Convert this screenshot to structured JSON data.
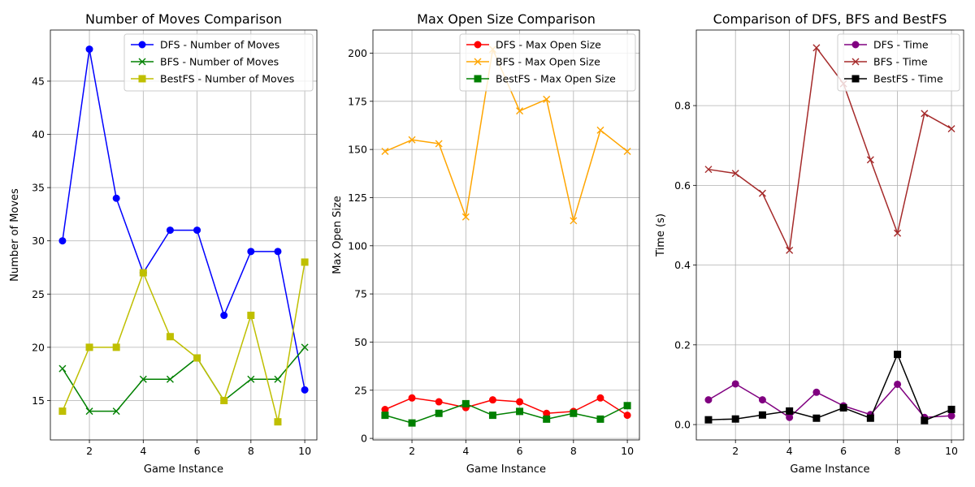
{
  "chart_data": [
    {
      "type": "line",
      "title": "Number of Moves Comparison",
      "xlabel": "Game Instance",
      "ylabel": "Number of Moves",
      "x": [
        1,
        2,
        3,
        4,
        5,
        6,
        7,
        8,
        9,
        10
      ],
      "xlim": [
        0.55,
        10.45
      ],
      "ylim": [
        11.3,
        49.8
      ],
      "xticks": [
        2,
        4,
        6,
        8,
        10
      ],
      "yticks": [
        15,
        20,
        25,
        30,
        35,
        40,
        45
      ],
      "grid": true,
      "legend": "top-right",
      "series": [
        {
          "name": "DFS - Number of Moves",
          "values": [
            30,
            48,
            34,
            27,
            31,
            31,
            23,
            29,
            29,
            16
          ],
          "color": "#0000ff",
          "marker": "circle"
        },
        {
          "name": "BFS - Number of Moves",
          "values": [
            18,
            14,
            14,
            17,
            17,
            19,
            15,
            17,
            17,
            20
          ],
          "color": "#008000",
          "marker": "x"
        },
        {
          "name": "BestFS - Number of Moves",
          "values": [
            14,
            20,
            20,
            27,
            21,
            19,
            15,
            23,
            13,
            28
          ],
          "color": "#bfbf00",
          "marker": "square"
        }
      ]
    },
    {
      "type": "line",
      "title": "Max Open Size Comparison",
      "xlabel": "Game Instance",
      "ylabel": "Max Open Size",
      "x": [
        1,
        2,
        3,
        4,
        5,
        6,
        7,
        8,
        9,
        10
      ],
      "xlim": [
        0.55,
        10.45
      ],
      "ylim": [
        -0.8,
        212
      ],
      "xticks": [
        2,
        4,
        6,
        8,
        10
      ],
      "yticks": [
        0,
        25,
        50,
        75,
        100,
        125,
        150,
        175,
        200
      ],
      "grid": true,
      "legend": "top-right",
      "series": [
        {
          "name": "DFS - Max Open Size",
          "values": [
            15,
            21,
            19,
            16,
            20,
            19,
            13,
            14,
            21,
            12
          ],
          "color": "#ff0000",
          "marker": "circle"
        },
        {
          "name": "BFS - Max Open Size",
          "values": [
            149,
            155,
            153,
            115,
            202,
            170,
            176,
            113,
            160,
            149
          ],
          "color": "#ffa500",
          "marker": "x"
        },
        {
          "name": "BestFS - Max Open Size",
          "values": [
            12,
            8,
            13,
            18,
            12,
            14,
            10,
            13,
            10,
            17
          ],
          "color": "#008000",
          "marker": "square"
        }
      ]
    },
    {
      "type": "line",
      "title": "Comparison of DFS, BFS and BestFS",
      "xlabel": "Game Instance",
      "ylabel": "Time (s)",
      "x": [
        1,
        2,
        3,
        4,
        5,
        6,
        7,
        8,
        9,
        10
      ],
      "xlim": [
        0.55,
        10.45
      ],
      "ylim": [
        -0.0385,
        0.9895
      ],
      "xticks": [
        2,
        4,
        6,
        8,
        10
      ],
      "yticks": [
        0.0,
        0.2,
        0.4,
        0.6,
        0.8
      ],
      "ytick_labels": [
        "0.0",
        "0.2",
        "0.4",
        "0.6",
        "0.8"
      ],
      "grid": true,
      "legend": "top-right",
      "series": [
        {
          "name": "DFS - Time",
          "values": [
            0.062,
            0.102,
            0.062,
            0.018,
            0.081,
            0.047,
            0.025,
            0.101,
            0.018,
            0.022
          ],
          "color": "#800080",
          "marker": "circle"
        },
        {
          "name": "BFS - Time",
          "values": [
            0.64,
            0.63,
            0.58,
            0.437,
            0.945,
            0.855,
            0.664,
            0.48,
            0.78,
            0.742
          ],
          "color": "#a52a2a",
          "marker": "x"
        },
        {
          "name": "BestFS - Time",
          "values": [
            0.012,
            0.014,
            0.024,
            0.034,
            0.016,
            0.042,
            0.016,
            0.176,
            0.01,
            0.038
          ],
          "color": "#000000",
          "marker": "square"
        }
      ]
    }
  ]
}
